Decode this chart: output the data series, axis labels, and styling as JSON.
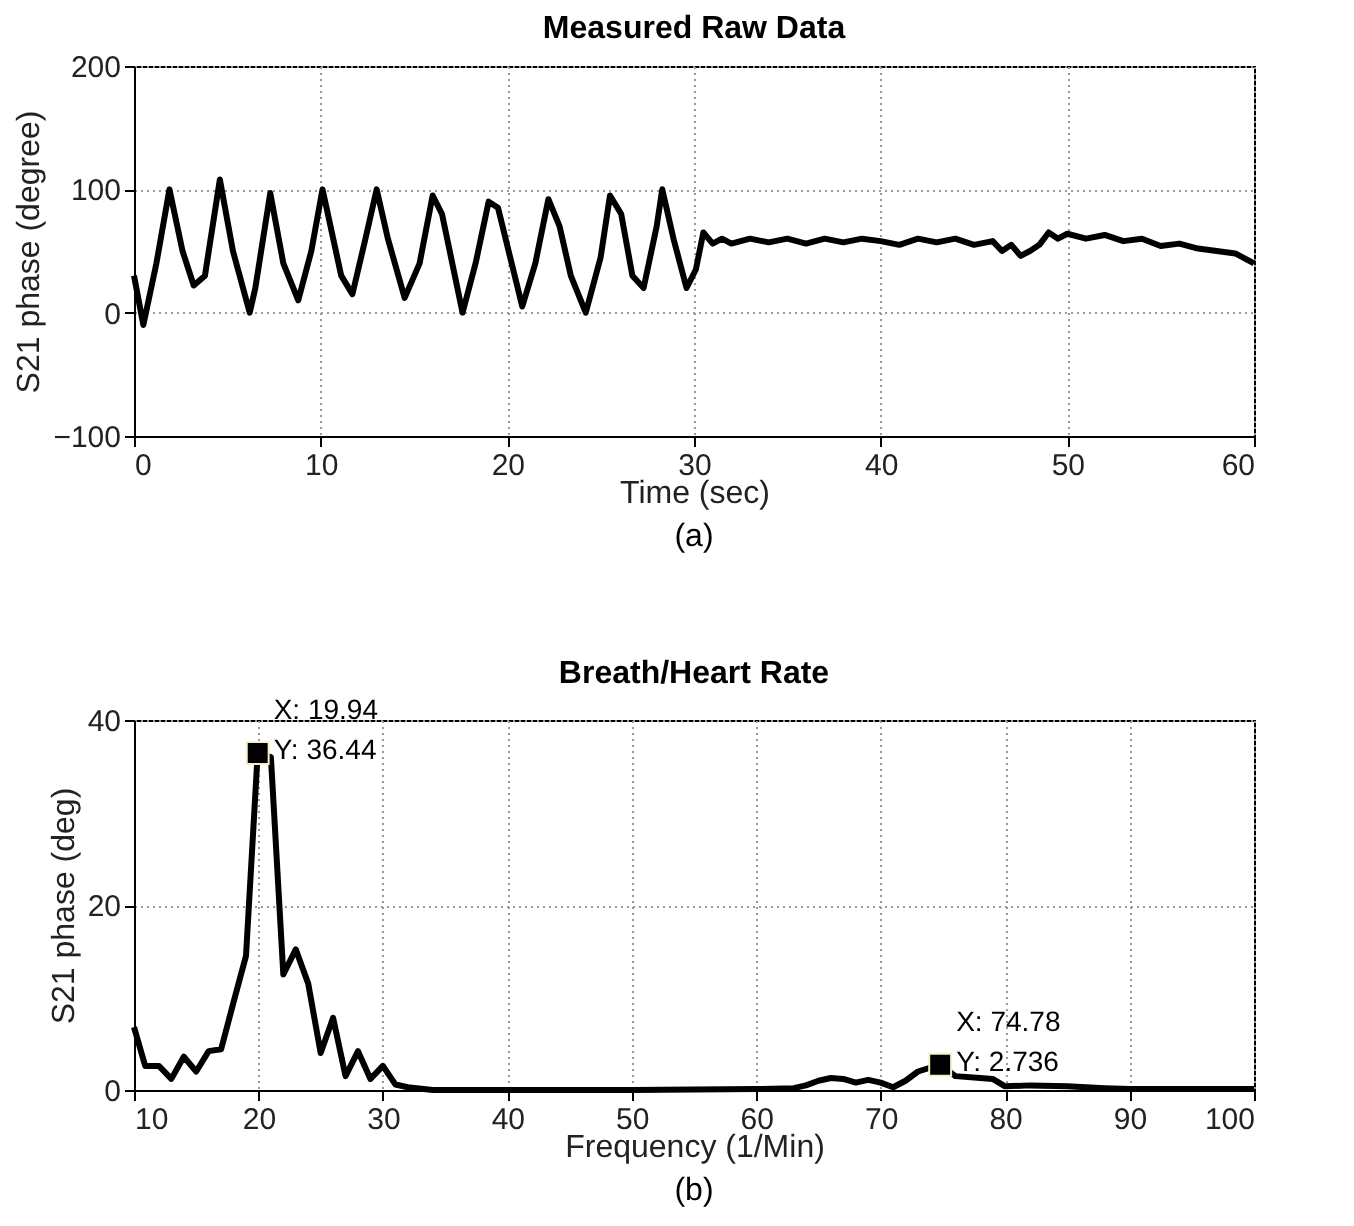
{
  "chart_data": [
    {
      "type": "line",
      "title": "Measured Raw Data",
      "xlabel": "Time (sec)",
      "ylabel": "S21 phase (degree)",
      "xlim": [
        0,
        60
      ],
      "ylim": [
        -100,
        200
      ],
      "xticks": [
        0,
        10,
        20,
        30,
        40,
        50,
        60
      ],
      "yticks": [
        -100,
        0,
        100,
        200
      ],
      "grid": true,
      "line_style": "solid",
      "color": "#000000",
      "annotations": [
        "(a)"
      ],
      "x": [
        0,
        0.5,
        1.2,
        1.9,
        2.6,
        3.2,
        3.8,
        4.6,
        5.3,
        6.2,
        6.5,
        7.3,
        8,
        8.8,
        9.5,
        10.1,
        11.1,
        11.7,
        12.4,
        13,
        13.6,
        14.5,
        15.3,
        16,
        16.5,
        17.6,
        18.3,
        19,
        19.5,
        20.8,
        21.5,
        22.2,
        22.8,
        23.4,
        24.2,
        25,
        25.5,
        26.1,
        26.7,
        27.3,
        28,
        28.3,
        28.9,
        29.6,
        30.1,
        30.5,
        31,
        31.5,
        32,
        33,
        34,
        35,
        36,
        37,
        38,
        39,
        40,
        41,
        42,
        43,
        44,
        45,
        46,
        46.5,
        47,
        47.5,
        48,
        48.5,
        49,
        49.5,
        50,
        51,
        52,
        53,
        54,
        55,
        56,
        57,
        58,
        59,
        60
      ],
      "values": [
        30,
        -10,
        40,
        100,
        50,
        22,
        30,
        108,
        50,
        0,
        20,
        97,
        40,
        10,
        50,
        100,
        30,
        15,
        60,
        100,
        60,
        12,
        40,
        95,
        80,
        0,
        40,
        90,
        85,
        5,
        40,
        92,
        70,
        30,
        0,
        45,
        95,
        80,
        30,
        20,
        70,
        100,
        60,
        20,
        35,
        65,
        56,
        60,
        56,
        60,
        57,
        60,
        56,
        60,
        57,
        60,
        58,
        55,
        60,
        57,
        60,
        55,
        58,
        50,
        55,
        46,
        50,
        55,
        65,
        60,
        64,
        60,
        63,
        58,
        60,
        54,
        56,
        52,
        50,
        48,
        40
      ]
    },
    {
      "type": "line",
      "title": "Breath/Heart Rate",
      "xlabel": "Frequency (1/Min)",
      "ylabel": "S21 phase (deg)",
      "xlim": [
        10,
        100
      ],
      "ylim": [
        0,
        40
      ],
      "xticks": [
        10,
        20,
        30,
        40,
        50,
        60,
        70,
        80,
        90,
        100
      ],
      "yticks": [
        0,
        20,
        40
      ],
      "grid": true,
      "line_style": "solid",
      "color": "#000000",
      "annotations": [
        {
          "text": "X: 19.94\nY: 36.44",
          "x": 19.94,
          "y": 36.44
        },
        {
          "text": "X: 74.78\nY: 2.736",
          "x": 74.78,
          "y": 2.736
        },
        "(b)"
      ],
      "x": [
        10,
        10.9,
        12,
        13,
        14,
        15,
        16,
        17,
        18,
        19,
        19.94,
        21,
        22,
        23,
        24,
        25,
        26,
        27,
        28,
        29,
        30,
        31,
        32,
        34,
        40,
        50,
        60,
        63,
        64,
        65,
        66,
        67,
        68,
        69,
        70,
        71,
        72,
        73,
        74.78,
        76,
        78,
        79,
        80,
        82,
        85,
        88,
        90,
        100
      ],
      "values": [
        6.8,
        2.6,
        2.6,
        1.2,
        3.6,
        2,
        4.2,
        4.4,
        9.5,
        14.5,
        36.44,
        36,
        12.5,
        15.2,
        11.5,
        4,
        7.8,
        1.5,
        4.2,
        1.2,
        2.6,
        0.6,
        0.3,
        0,
        0,
        0,
        0.1,
        0.2,
        0.5,
        1.0,
        1.3,
        1.2,
        0.8,
        1.1,
        0.8,
        0.3,
        1.0,
        2.0,
        2.736,
        1.5,
        1.3,
        1.2,
        0.4,
        0.5,
        0.4,
        0.2,
        0.1,
        0.1
      ]
    }
  ]
}
